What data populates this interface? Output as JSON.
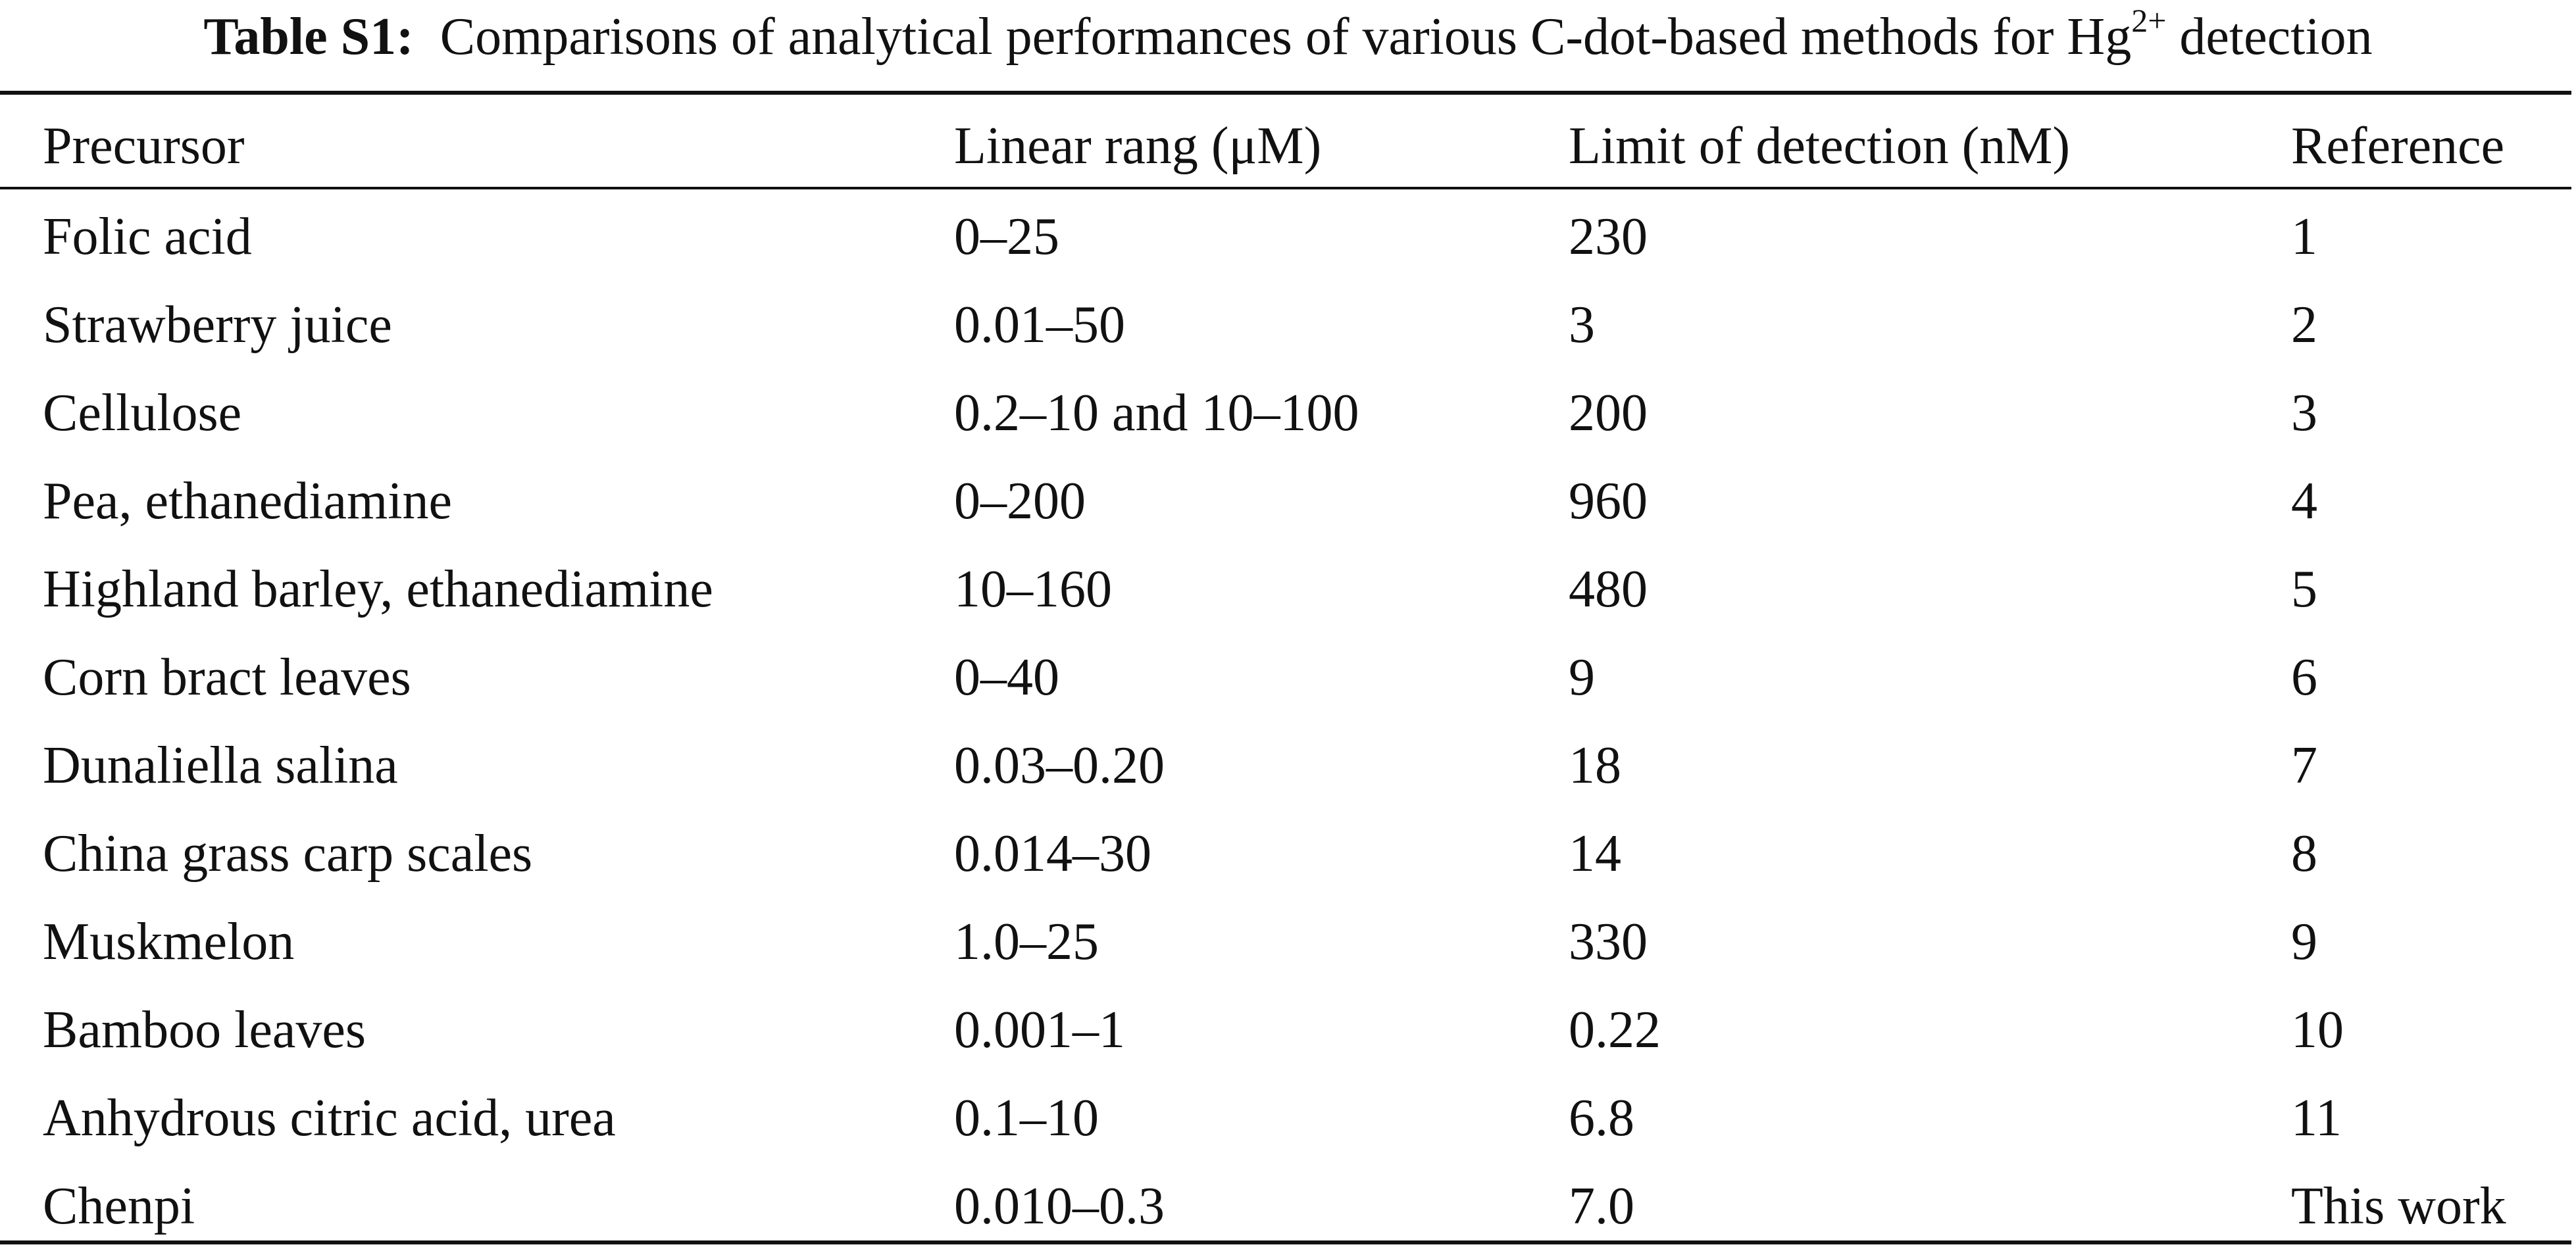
{
  "caption": {
    "label": "Table S1:",
    "text": "Comparisons of analytical performances of various C-dot-based methods for",
    "ion": "Hg",
    "ion_charge": "2+",
    "tail": "detection"
  },
  "table": {
    "headers": [
      "Precursor",
      "Linear rang (μM)",
      "Limit of detection (nM)",
      "Reference"
    ],
    "rows": [
      [
        "Folic acid",
        "0–25",
        "230",
        "1"
      ],
      [
        "Strawberry juice",
        "0.01–50",
        "3",
        "2"
      ],
      [
        "Cellulose",
        "0.2–10 and 10–100",
        "200",
        "3"
      ],
      [
        "Pea, ethanediamine",
        "0–200",
        "960",
        "4"
      ],
      [
        "Highland barley, ethanediamine",
        "10–160",
        "480",
        "5"
      ],
      [
        "Corn bract leaves",
        "0–40",
        "9",
        "6"
      ],
      [
        "Dunaliella salina",
        "0.03–0.20",
        "18",
        "7"
      ],
      [
        "China grass carp scales",
        "0.014–30",
        "14",
        "8"
      ],
      [
        "Muskmelon",
        "1.0–25",
        "330",
        "9"
      ],
      [
        "Bamboo leaves",
        "0.001–1",
        "0.22",
        "10"
      ],
      [
        "Anhydrous citric acid, urea",
        "0.1–10",
        "6.8",
        "11"
      ],
      [
        "Chenpi",
        "0.010–0.3",
        "7.0",
        "This work"
      ]
    ]
  }
}
